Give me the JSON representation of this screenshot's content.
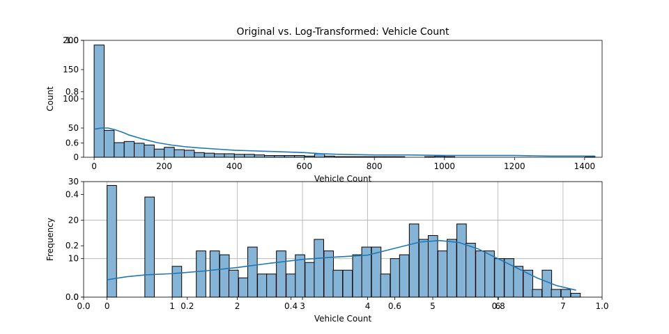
{
  "figure": {
    "title": "Original vs. Log-Transformed: Vehicle Count"
  },
  "ghost_axes": {
    "x_ticks": [
      "0.0",
      "0.2",
      "0.4",
      "0.6",
      "0.8",
      "1.0"
    ],
    "y_ticks": [
      "0.0",
      "0.2",
      "0.4",
      "0.6",
      "0.8",
      "1.0"
    ]
  },
  "colors": {
    "bar_fill": "#86b4d6",
    "bar_edge": "#000000",
    "kde_line": "#1f77b4",
    "grid": "#b0b0b0"
  },
  "chart_data": [
    {
      "type": "bar",
      "subtype": "histogram",
      "title": "",
      "xlabel": "Vehicle Count",
      "ylabel": "Count",
      "xlim": [
        -30,
        1450
      ],
      "ylim": [
        0,
        200
      ],
      "x_ticks": [
        0,
        200,
        400,
        600,
        800,
        1000,
        1200,
        1400
      ],
      "y_ticks": [
        0,
        50,
        100,
        150,
        200
      ],
      "grid": false,
      "bin_start": 0,
      "bin_width": 28.6,
      "values": [
        192,
        46,
        25,
        27,
        24,
        21,
        14,
        17,
        13,
        12,
        8,
        7,
        6,
        6,
        5,
        5,
        4,
        3,
        3,
        3,
        3,
        2,
        6,
        2,
        1,
        1,
        1,
        1,
        1,
        1,
        1,
        0,
        0,
        1,
        2,
        1,
        0,
        0,
        0,
        0,
        0,
        0,
        0,
        0,
        0,
        0,
        0,
        0,
        0,
        1
      ],
      "kde": {
        "x": [
          0,
          20,
          40,
          60,
          80,
          100,
          140,
          180,
          220,
          260,
          300,
          350,
          400,
          450,
          500,
          550,
          600,
          650,
          700,
          800,
          900,
          1000,
          1100,
          1200,
          1300,
          1430
        ],
        "y": [
          48,
          50,
          50,
          47,
          43,
          38,
          31,
          25,
          21,
          18,
          16,
          14,
          12,
          11,
          10,
          9,
          8,
          6,
          5,
          4,
          4,
          3,
          3,
          3,
          2,
          2
        ]
      }
    },
    {
      "type": "bar",
      "subtype": "histogram",
      "title": "",
      "xlabel": "Vehicle Count",
      "ylabel": "Frequency",
      "xlim": [
        -0.36,
        7.6
      ],
      "ylim": [
        0,
        30
      ],
      "x_ticks": [
        0,
        1,
        2,
        3,
        4,
        5,
        6,
        7
      ],
      "y_ticks": [
        0,
        10,
        20,
        30
      ],
      "grid": true,
      "bin_start": 0,
      "bin_width": 0.1455,
      "values": [
        29,
        0,
        0,
        0,
        0,
        0,
        0,
        0,
        0,
        0,
        0,
        0,
        0,
        0,
        0,
        0,
        0,
        0,
        0,
        0,
        0,
        0,
        0,
        0,
        0,
        0,
        0,
        0,
        0,
        0,
        0,
        0,
        0,
        0,
        0,
        0,
        0,
        0,
        0,
        0,
        0,
        0,
        0,
        0,
        0,
        0,
        0,
        0,
        0,
        0
      ],
      "bars": [
        {
          "x": 0.0,
          "v": 29
        },
        {
          "x": 0.58,
          "v": 26
        },
        {
          "x": 1.0,
          "v": 8
        },
        {
          "x": 1.37,
          "v": 12
        },
        {
          "x": 1.58,
          "v": 12
        },
        {
          "x": 1.73,
          "v": 11
        },
        {
          "x": 1.87,
          "v": 7
        },
        {
          "x": 2.02,
          "v": 5
        },
        {
          "x": 2.16,
          "v": 13
        },
        {
          "x": 2.31,
          "v": 6
        },
        {
          "x": 2.45,
          "v": 6
        },
        {
          "x": 2.6,
          "v": 12
        },
        {
          "x": 2.75,
          "v": 6
        },
        {
          "x": 2.89,
          "v": 11
        },
        {
          "x": 3.04,
          "v": 9
        },
        {
          "x": 3.18,
          "v": 15
        },
        {
          "x": 3.33,
          "v": 12
        },
        {
          "x": 3.47,
          "v": 7
        },
        {
          "x": 3.62,
          "v": 7
        },
        {
          "x": 3.77,
          "v": 11
        },
        {
          "x": 3.91,
          "v": 13
        },
        {
          "x": 4.06,
          "v": 13
        },
        {
          "x": 4.2,
          "v": 6
        },
        {
          "x": 4.35,
          "v": 10
        },
        {
          "x": 4.49,
          "v": 11
        },
        {
          "x": 4.64,
          "v": 19
        },
        {
          "x": 4.79,
          "v": 15
        },
        {
          "x": 4.93,
          "v": 16
        },
        {
          "x": 5.08,
          "v": 12
        },
        {
          "x": 5.22,
          "v": 15
        },
        {
          "x": 5.37,
          "v": 19
        },
        {
          "x": 5.51,
          "v": 14
        },
        {
          "x": 5.66,
          "v": 12
        },
        {
          "x": 5.8,
          "v": 12
        },
        {
          "x": 5.95,
          "v": 10
        },
        {
          "x": 6.1,
          "v": 10
        },
        {
          "x": 6.24,
          "v": 8
        },
        {
          "x": 6.39,
          "v": 7
        },
        {
          "x": 6.53,
          "v": 2
        },
        {
          "x": 6.68,
          "v": 7
        },
        {
          "x": 6.82,
          "v": 2
        },
        {
          "x": 6.97,
          "v": 2
        },
        {
          "x": 7.12,
          "v": 1
        }
      ],
      "kde": {
        "x": [
          0,
          0.3,
          0.6,
          1.0,
          1.5,
          2.0,
          2.5,
          3.0,
          3.5,
          4.0,
          4.4,
          4.8,
          5.1,
          5.4,
          5.7,
          6.0,
          6.3,
          6.6,
          6.9,
          7.2
        ],
        "y": [
          4.5,
          5.3,
          5.8,
          6.1,
          6.8,
          7.7,
          8.8,
          9.8,
          10.4,
          10.9,
          12.6,
          14.3,
          14.7,
          14.2,
          12.5,
          10,
          7.5,
          5,
          3,
          1.8
        ]
      }
    }
  ]
}
